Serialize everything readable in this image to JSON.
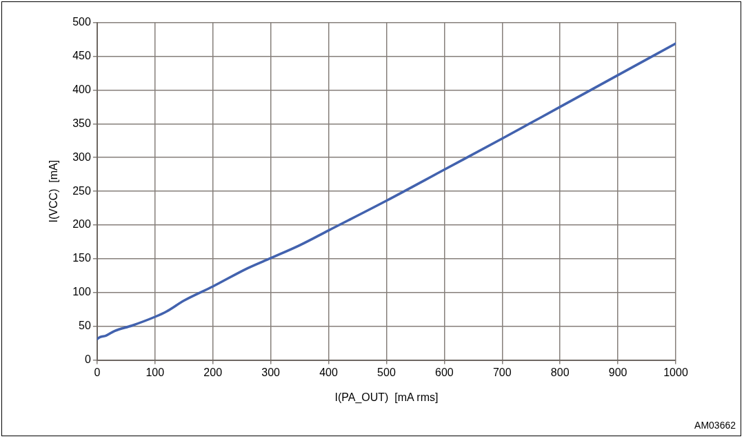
{
  "chart_data": {
    "type": "line",
    "xlabel": "I(PA_OUT)  [mA rms]",
    "ylabel": "I(VCC)  [mA]",
    "annotations": [
      "AM03662"
    ],
    "x": [
      0,
      5,
      15,
      30,
      60,
      100,
      120,
      150,
      200,
      260,
      300,
      350,
      400,
      500,
      600,
      700,
      800,
      900,
      1000
    ],
    "series": [
      {
        "color": "#4262ae",
        "values": [
          31,
          34,
          36,
          43,
          51,
          64,
          72,
          88,
          109,
          136,
          151,
          170,
          192,
          236,
          282,
          328,
          375,
          422,
          469
        ]
      }
    ],
    "xlim": [
      0,
      1000
    ],
    "xticks": [
      0,
      100,
      200,
      300,
      400,
      500,
      600,
      700,
      800,
      900,
      1000
    ],
    "ylim": [
      0,
      500
    ],
    "yticks": [
      0,
      50,
      100,
      150,
      200,
      250,
      300,
      350,
      400,
      450,
      500
    ],
    "grid": true,
    "legend": false,
    "marker": "none",
    "line_style": "solid"
  }
}
